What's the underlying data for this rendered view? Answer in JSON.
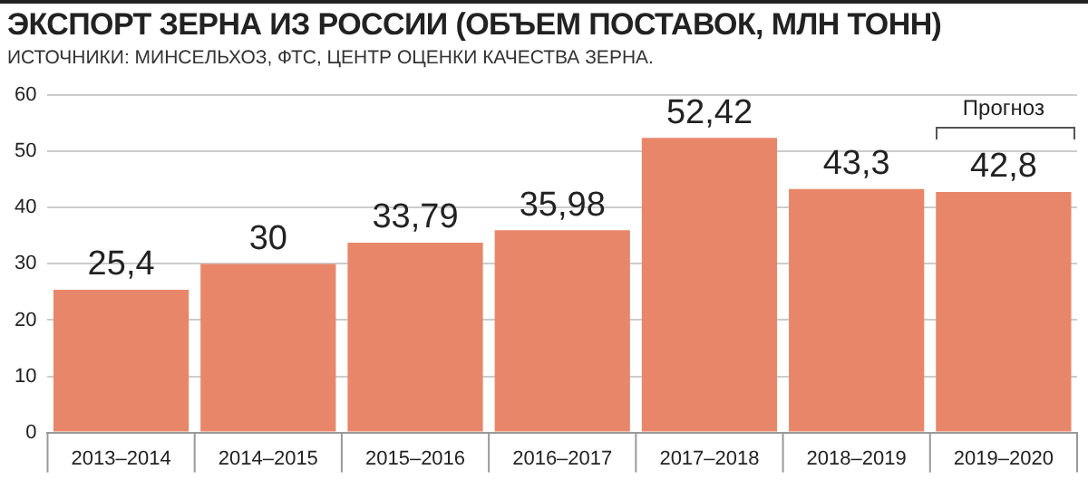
{
  "chart_data": {
    "type": "bar",
    "title": "ЭКСПОРТ ЗЕРНА ИЗ РОССИИ (ОБЪЕМ ПОСТАВОК, МЛН ТОНН)",
    "subtitle": "ИСТОЧНИКИ: МИНСЕЛЬХОЗ, ФТС, ЦЕНТР ОЦЕНКИ КАЧЕСТВА ЗЕРНА.",
    "categories": [
      "2013–2014",
      "2014–2015",
      "2015–2016",
      "2016–2017",
      "2017–2018",
      "2018–2019",
      "2019–2020"
    ],
    "values": [
      25.4,
      30,
      33.79,
      35.98,
      52.42,
      43.3,
      42.8
    ],
    "value_labels": [
      "25,4",
      "30",
      "33,79",
      "35,98",
      "52,42",
      "43,3",
      "42,8"
    ],
    "color": "#e8866a",
    "ylim": [
      0,
      60
    ],
    "yticks": [
      0,
      10,
      20,
      30,
      40,
      50,
      60
    ],
    "grid": "y",
    "annotations": [
      "Прогноз"
    ]
  }
}
